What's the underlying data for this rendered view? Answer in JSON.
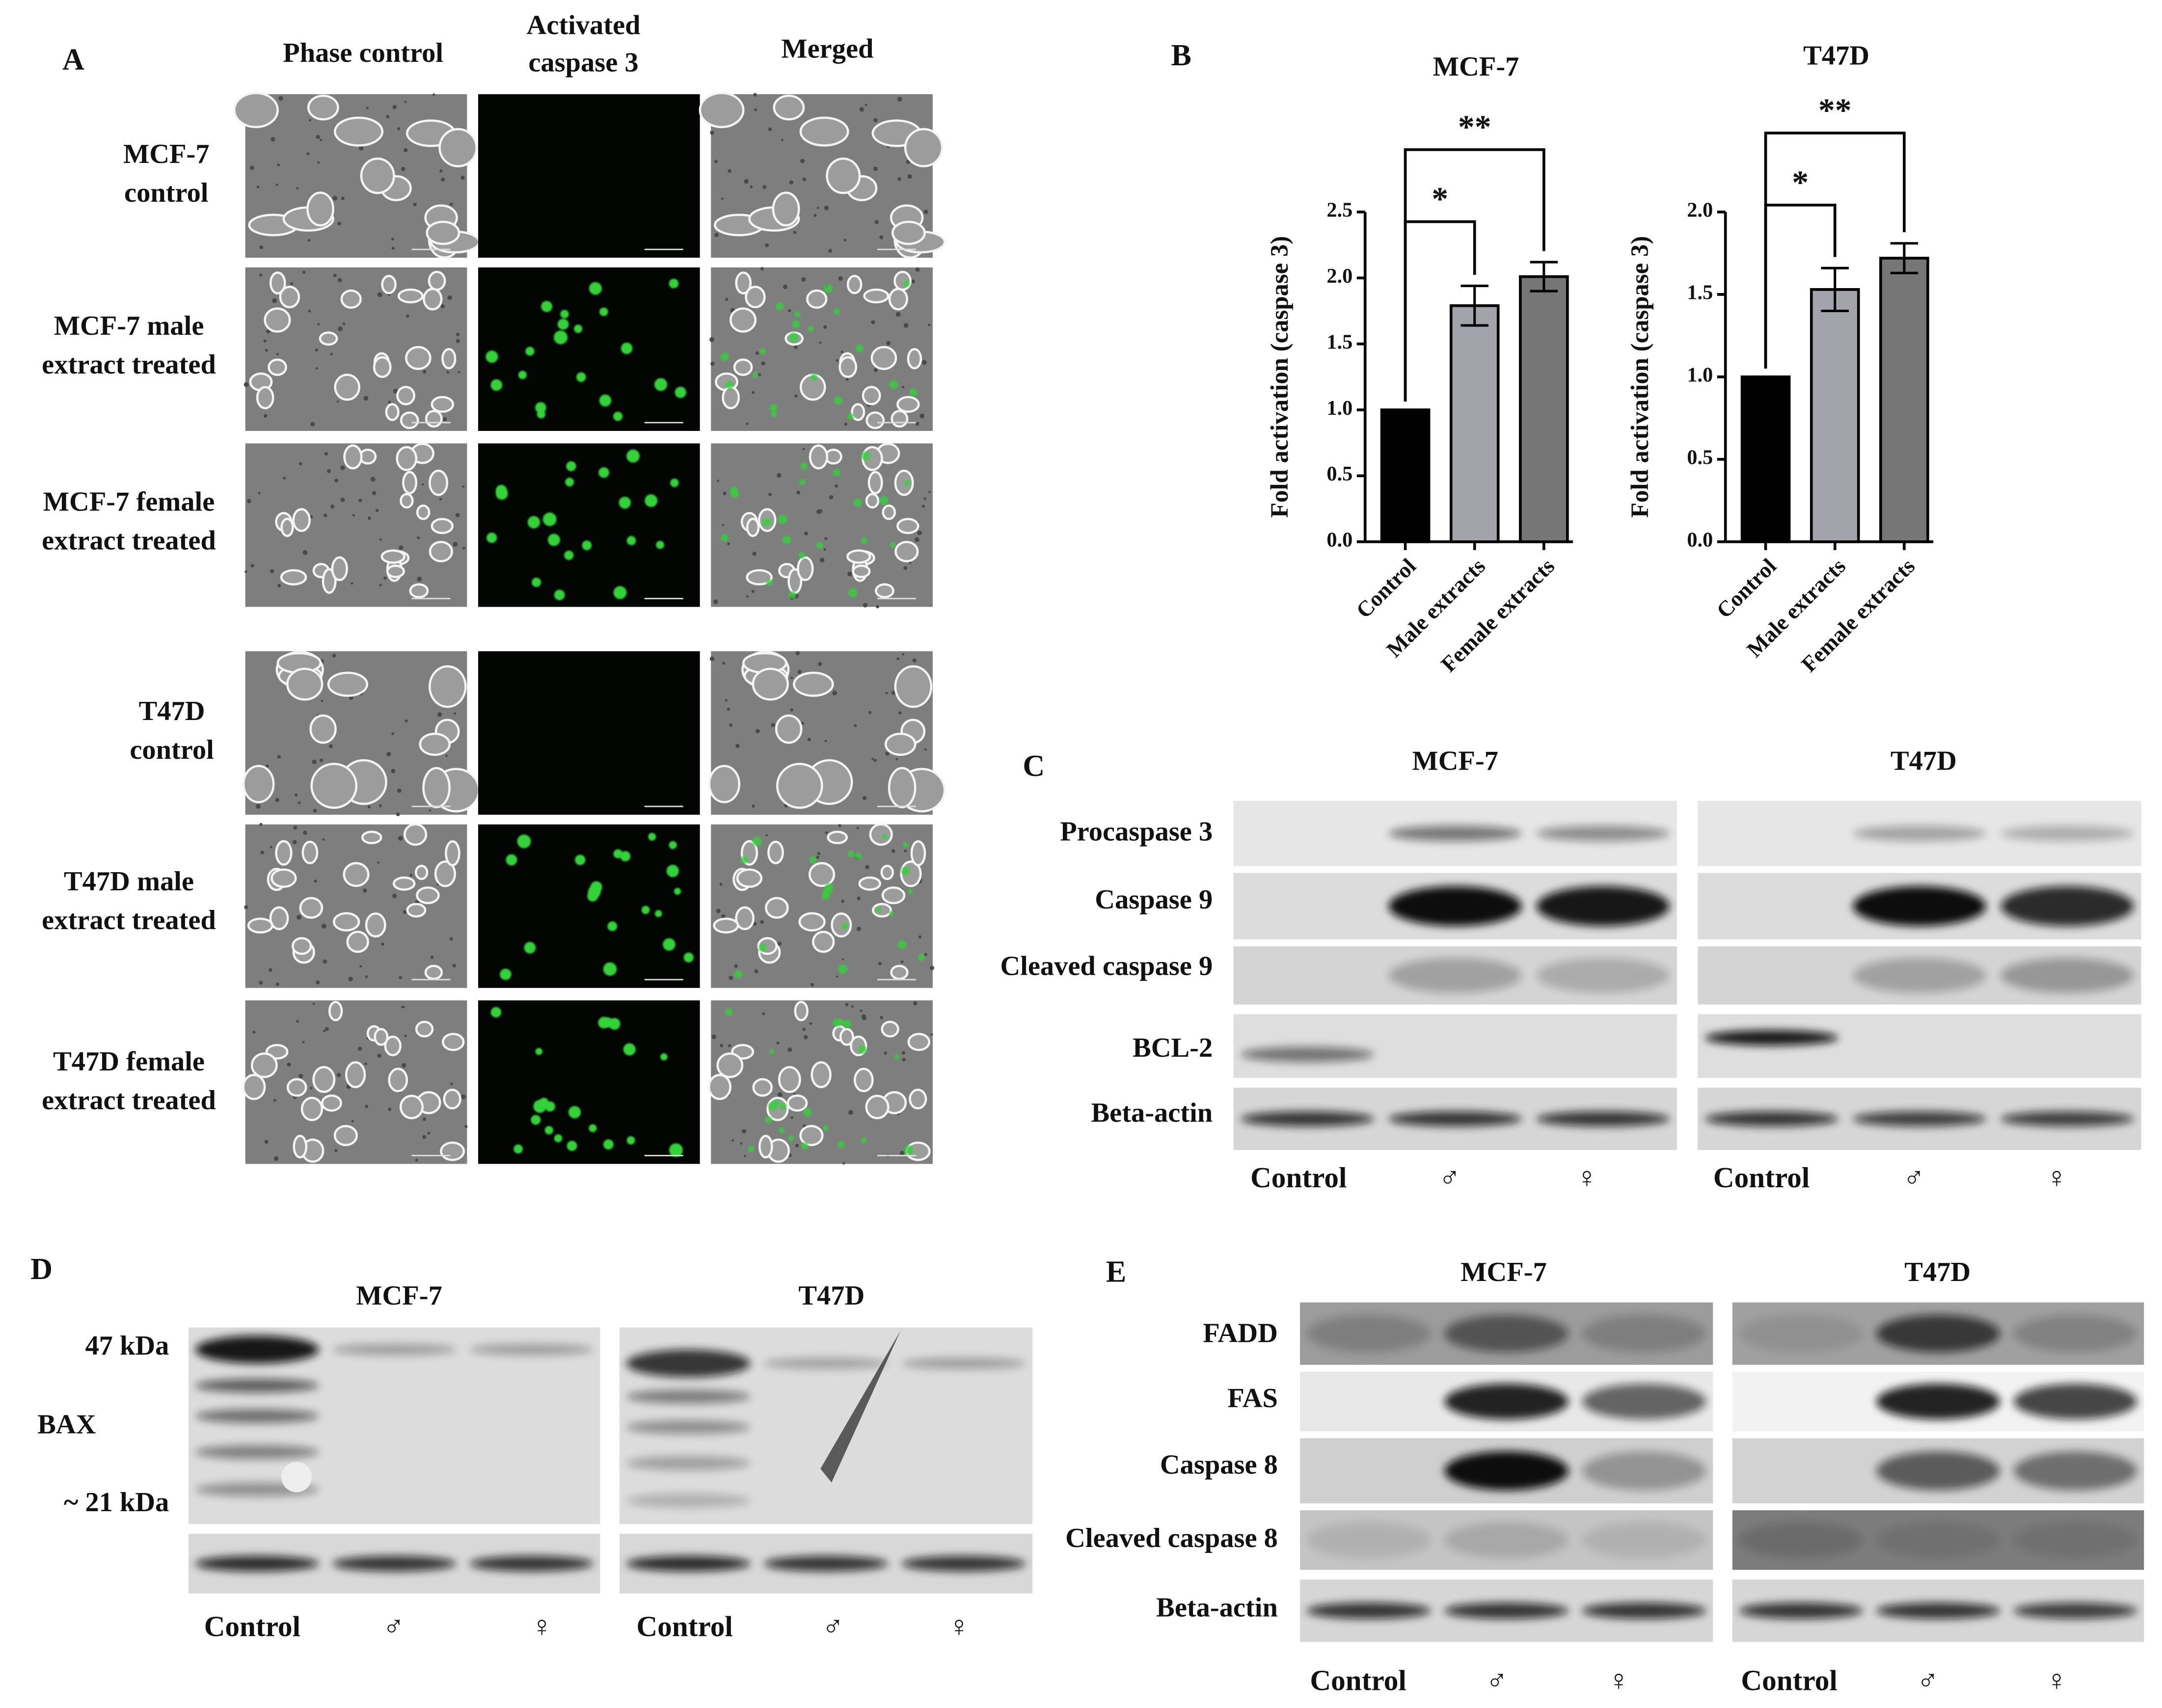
{
  "panel_labels": [
    "A",
    "B",
    "C",
    "D",
    "E"
  ],
  "panel_a": {
    "columns": [
      [
        "Phase control"
      ],
      [
        "Activated",
        "caspase 3"
      ],
      [
        "Merged"
      ]
    ],
    "rows": [
      [
        "MCF-7",
        "control"
      ],
      [
        "MCF-7 male",
        "extract treated"
      ],
      [
        "MCF-7 female",
        "extract treated"
      ],
      [
        "T47D",
        "control"
      ],
      [
        "T47D male",
        "extract treated"
      ],
      [
        "T47D female",
        "extract treated"
      ]
    ]
  },
  "chart_data": [
    {
      "type": "bar",
      "title": "MCF-7",
      "y_label": "Fold activation (caspase 3)",
      "categories": [
        "Control",
        "Male extracts",
        "Female extracts"
      ],
      "values": [
        1.0,
        1.79,
        2.01
      ],
      "errors": [
        0,
        0.15,
        0.11
      ],
      "colors": [
        "#000000",
        "#a3a3ab",
        "#767676"
      ],
      "ylim": [
        0,
        2.5
      ],
      "yticks": [
        {
          "value": 0,
          "label": "0.0"
        },
        0.5,
        {
          "value": 1,
          "label": "1.0"
        },
        1.5,
        {
          "value": 2,
          "label": "2.0"
        },
        2.5
      ],
      "significance": [
        "*",
        "**"
      ]
    },
    {
      "type": "bar",
      "title": "T47D",
      "y_label": "Fold activation (caspase 3)",
      "categories": [
        "Control",
        "Male extracts",
        "Female extracts"
      ],
      "values": [
        1.0,
        1.53,
        1.72
      ],
      "errors": [
        0,
        0.13,
        0.09
      ],
      "colors": [
        "#000000",
        "#a3a3ab",
        "#767676"
      ],
      "ylim": [
        0,
        2.0
      ],
      "yticks": [
        {
          "value": 0,
          "label": "0.0"
        },
        0.5,
        {
          "value": 1,
          "label": "1.0"
        },
        1.5,
        {
          "value": 2,
          "label": "2.0"
        }
      ],
      "significance": [
        "*",
        "**"
      ]
    }
  ],
  "panel_c": {
    "groups": [
      "MCF-7",
      "T47D"
    ],
    "rows": [
      "Procaspase 3",
      "Caspase 9",
      "Cleaved caspase 9",
      "BCL-2",
      "Beta-actin"
    ],
    "lanes": [
      "Control",
      "♂",
      "♀"
    ]
  },
  "panel_d": {
    "groups": [
      "MCF-7",
      "T47D"
    ],
    "markers": [
      "47 kDa",
      "~ 21 kDa"
    ],
    "protein": "BAX",
    "lanes": [
      "Control",
      "♂",
      "♀"
    ]
  },
  "panel_e": {
    "groups": [
      "MCF-7",
      "T47D"
    ],
    "rows": [
      "FADD",
      "FAS",
      "Caspase 8",
      "Cleaved caspase 8",
      "Beta-actin"
    ],
    "lanes": [
      "Control",
      "♂",
      "♀"
    ]
  }
}
